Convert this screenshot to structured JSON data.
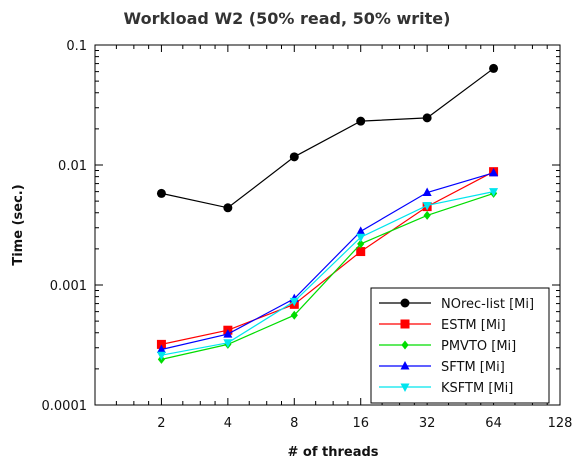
{
  "chart_data": {
    "type": "line",
    "title": "Workload W2 (50% read, 50% write)",
    "xlabel": "# of threads",
    "ylabel": "Time (sec.)",
    "x_scale": "log2",
    "y_scale": "log10",
    "x": [
      2,
      4,
      8,
      16,
      32,
      64
    ],
    "x_ticks": [
      2,
      4,
      8,
      16,
      32,
      64,
      128
    ],
    "x_tick_labels": [
      "2",
      "4",
      "8",
      "16",
      "32",
      "64",
      "128"
    ],
    "xlim": [
      1,
      128
    ],
    "ylim": [
      0.0001,
      0.1
    ],
    "y_ticks": [
      0.0001,
      0.001,
      0.01,
      0.1
    ],
    "y_tick_labels": [
      "0.0001",
      "0.001",
      "0.01",
      "0.1"
    ],
    "grid": false,
    "legend_position": "bottom-right",
    "series": [
      {
        "name": "NOrec-list [Mi]",
        "color": "#000000",
        "marker": "circle",
        "values": [
          0.0058,
          0.0044,
          0.0117,
          0.0232,
          0.0247,
          0.0638
        ]
      },
      {
        "name": "ESTM [Mi]",
        "color": "#ff0000",
        "marker": "square",
        "values": [
          0.00032,
          0.00042,
          0.00069,
          0.0019,
          0.0045,
          0.0088
        ]
      },
      {
        "name": "PMVTO [Mi]",
        "color": "#00dd00",
        "marker": "diamond",
        "values": [
          0.00024,
          0.00032,
          0.00056,
          0.0022,
          0.0038,
          0.0058
        ]
      },
      {
        "name": "SFTM [Mi]",
        "color": "#0000ff",
        "marker": "triangle-up",
        "values": [
          0.00029,
          0.00039,
          0.00077,
          0.0028,
          0.0059,
          0.0086
        ]
      },
      {
        "name": "KSFTM [Mi]",
        "color": "#00e5ee",
        "marker": "triangle-down",
        "values": [
          0.00026,
          0.00033,
          0.00073,
          0.0025,
          0.0046,
          0.006
        ]
      }
    ]
  }
}
